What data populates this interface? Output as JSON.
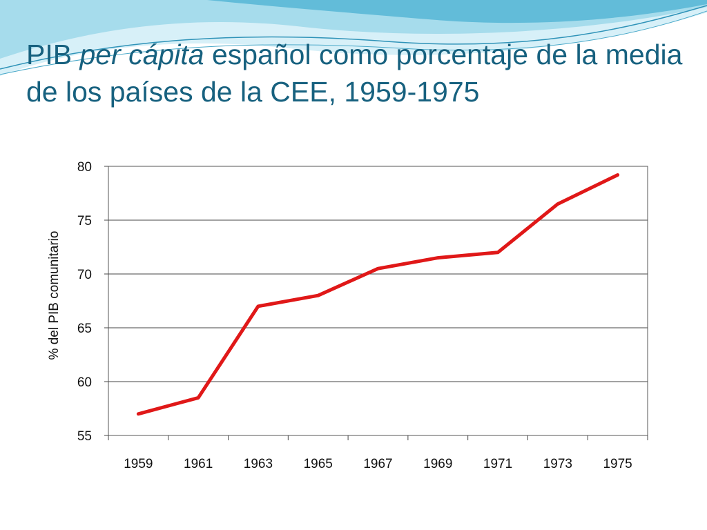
{
  "slide": {
    "title_part1": "PIB ",
    "title_italic": "per cápita",
    "title_part2": " español como porcentaje de la media de los países de la CEE, 1959-1975"
  },
  "colors": {
    "title": "#17617f",
    "line": "#e01818",
    "decor_light": "#bfe6f3",
    "decor_mid": "#6fc3dd",
    "decor_dark": "#2f93b8"
  },
  "chart_data": {
    "type": "line",
    "title": "",
    "xlabel": "",
    "ylabel": "% del PIB comunitario",
    "x_ticks": [
      "1959",
      "1961",
      "1963",
      "1965",
      "1967",
      "1969",
      "1971",
      "1973",
      "1975"
    ],
    "y_ticks": [
      55,
      60,
      65,
      70,
      75,
      80
    ],
    "ylim": [
      55,
      80
    ],
    "xlim": [
      1958,
      1976
    ],
    "grid": "horizontal",
    "legend": "none",
    "series": [
      {
        "x": [
          1959,
          1961,
          1963,
          1965,
          1967,
          1969,
          1971,
          1973,
          1975
        ],
        "values": [
          57.0,
          58.5,
          67.0,
          68.0,
          70.5,
          71.5,
          72.0,
          76.5,
          79.2
        ]
      }
    ]
  }
}
